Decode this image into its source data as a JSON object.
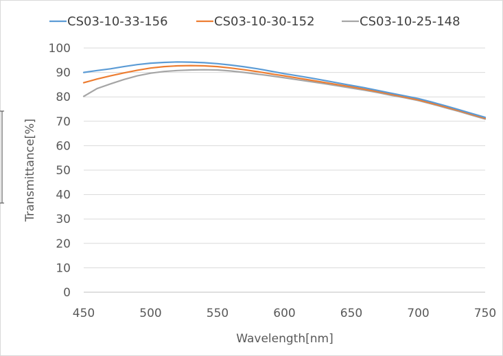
{
  "chart_data": {
    "type": "line",
    "title": "",
    "xlabel": "Wavelength[nm]",
    "ylabel": "Transmittance[%]",
    "xlim": [
      450,
      750
    ],
    "ylim": [
      0,
      100
    ],
    "xticks": [
      450,
      500,
      550,
      600,
      650,
      700,
      750
    ],
    "yticks": [
      0,
      10,
      20,
      30,
      40,
      50,
      60,
      70,
      80,
      90,
      100
    ],
    "grid": "horizontal",
    "legend_position": "top",
    "x": [
      450,
      460,
      470,
      480,
      490,
      500,
      510,
      520,
      530,
      540,
      550,
      560,
      570,
      580,
      590,
      600,
      610,
      620,
      630,
      640,
      650,
      660,
      670,
      680,
      690,
      700,
      710,
      720,
      730,
      740,
      750
    ],
    "series": [
      {
        "name": "CS03-10-33-156",
        "color": "#5b9bd5",
        "values": [
          90.0,
          90.8,
          91.5,
          92.4,
          93.2,
          93.8,
          94.1,
          94.3,
          94.2,
          94.0,
          93.6,
          93.0,
          92.3,
          91.5,
          90.5,
          89.5,
          88.6,
          87.7,
          86.7,
          85.7,
          84.7,
          83.7,
          82.6,
          81.5,
          80.4,
          79.3,
          77.9,
          76.4,
          74.8,
          73.2,
          71.6
        ]
      },
      {
        "name": "CS03-10-30-152",
        "color": "#ed7d31",
        "values": [
          85.8,
          87.3,
          88.6,
          89.8,
          90.9,
          91.8,
          92.4,
          92.7,
          92.8,
          92.7,
          92.4,
          91.8,
          91.1,
          90.3,
          89.4,
          88.6,
          87.7,
          86.8,
          85.9,
          85.0,
          84.1,
          83.1,
          82.1,
          81.0,
          79.9,
          78.8,
          77.4,
          75.9,
          74.4,
          72.8,
          71.2
        ]
      },
      {
        "name": "CS03-10-25-148",
        "color": "#a5a5a5",
        "values": [
          80.2,
          83.4,
          85.3,
          87.1,
          88.6,
          89.7,
          90.4,
          90.8,
          91.0,
          91.1,
          91.0,
          90.6,
          90.0,
          89.3,
          88.6,
          87.8,
          87.0,
          86.2,
          85.4,
          84.5,
          83.6,
          82.7,
          81.7,
          80.6,
          79.6,
          78.5,
          77.1,
          75.6,
          74.1,
          72.5,
          70.9
        ]
      }
    ]
  }
}
